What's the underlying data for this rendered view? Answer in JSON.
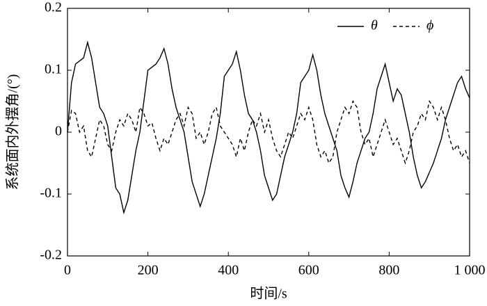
{
  "chart_data": {
    "type": "line",
    "xlabel": "时间/s",
    "ylabel": "系统面内外摆角/(°)",
    "x": [
      0,
      10,
      20,
      30,
      40,
      50,
      60,
      70,
      80,
      90,
      100,
      110,
      120,
      130,
      140,
      150,
      160,
      170,
      180,
      190,
      200,
      210,
      220,
      230,
      240,
      250,
      260,
      270,
      280,
      290,
      300,
      310,
      320,
      330,
      340,
      350,
      360,
      370,
      380,
      390,
      400,
      410,
      420,
      430,
      440,
      450,
      460,
      470,
      480,
      490,
      500,
      510,
      520,
      530,
      540,
      550,
      560,
      570,
      580,
      590,
      600,
      610,
      620,
      630,
      640,
      650,
      660,
      670,
      680,
      690,
      700,
      710,
      720,
      730,
      740,
      750,
      760,
      770,
      780,
      790,
      800,
      810,
      820,
      830,
      840,
      850,
      860,
      870,
      880,
      890,
      900,
      910,
      920,
      930,
      940,
      950,
      960,
      970,
      980,
      990,
      1000
    ],
    "series": [
      {
        "name": "θ",
        "color": "#000000",
        "linestyle": "solid",
        "values": [
          0,
          0.08,
          0.11,
          0.115,
          0.12,
          0.145,
          0.12,
          0.08,
          0.04,
          0.03,
          0.01,
          -0.04,
          -0.09,
          -0.1,
          -0.13,
          -0.11,
          -0.07,
          -0.03,
          0,
          0.05,
          0.1,
          0.105,
          0.11,
          0.12,
          0.135,
          0.11,
          0.07,
          0.04,
          0.02,
          0,
          -0.04,
          -0.08,
          -0.1,
          -0.12,
          -0.1,
          -0.07,
          -0.04,
          -0.01,
          0.03,
          0.09,
          0.1,
          0.11,
          0.13,
          0.1,
          0.06,
          0.03,
          0.02,
          0,
          -0.03,
          -0.07,
          -0.09,
          -0.11,
          -0.1,
          -0.07,
          -0.04,
          -0.02,
          0,
          0.03,
          0.08,
          0.09,
          0.1,
          0.125,
          0.1,
          0.06,
          0.03,
          0.01,
          -0.01,
          -0.03,
          -0.07,
          -0.09,
          -0.105,
          -0.08,
          -0.05,
          -0.03,
          -0.01,
          0,
          0.03,
          0.07,
          0.09,
          0.11,
          0.08,
          0.05,
          0.07,
          0.06,
          0.03,
          0,
          -0.04,
          -0.07,
          -0.09,
          -0.08,
          -0.065,
          -0.05,
          -0.03,
          -0.01,
          0.02,
          0.04,
          0.06,
          0.08,
          0.09,
          0.07,
          0.055
        ]
      },
      {
        "name": "ϕ",
        "color": "#000000",
        "linestyle": "dashed",
        "values": [
          0,
          0.035,
          0.03,
          0,
          0.01,
          -0.03,
          -0.04,
          -0.01,
          0.02,
          0.01,
          -0.02,
          -0.03,
          0,
          0.02,
          0.01,
          0.03,
          0.02,
          0,
          0.04,
          0.03,
          0.01,
          0.015,
          -0.01,
          -0.03,
          -0.01,
          -0.02,
          0,
          0.02,
          0.03,
          0.01,
          0.04,
          0.03,
          -0.01,
          0,
          -0.02,
          0,
          0.03,
          0.04,
          0.01,
          0,
          -0.01,
          -0.02,
          -0.04,
          -0.01,
          -0.03,
          0,
          0.02,
          0.01,
          0.03,
          0,
          0.02,
          -0.01,
          -0.03,
          -0.04,
          -0.02,
          0,
          -0.01,
          0.01,
          0.03,
          0.02,
          0.04,
          0.02,
          -0.02,
          -0.04,
          -0.03,
          -0.05,
          -0.04,
          0,
          0.02,
          0.04,
          0.03,
          0.05,
          0.04,
          0,
          -0.02,
          -0.01,
          -0.04,
          -0.02,
          0,
          0.02,
          0,
          -0.02,
          -0.01,
          -0.03,
          -0.05,
          -0.03,
          0,
          0.01,
          0.03,
          0.02,
          0.05,
          0.04,
          0.02,
          0.04,
          0.02,
          -0.01,
          -0.03,
          -0.02,
          -0.04,
          -0.03,
          -0.05
        ]
      }
    ],
    "xlim": [
      0,
      1000
    ],
    "xticks": [
      0,
      200,
      400,
      600,
      800,
      {
        "value": 1000,
        "label": "1 000"
      }
    ],
    "ylim": [
      -0.2,
      0.2
    ],
    "yticks": [
      0.2,
      0.1,
      0,
      -0.1,
      -0.2
    ],
    "grid": false,
    "legend": "upper right"
  }
}
